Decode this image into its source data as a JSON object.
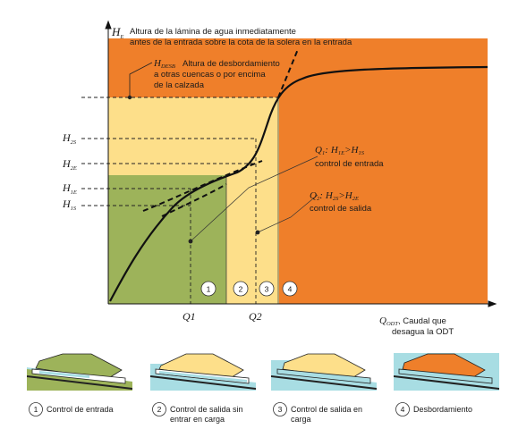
{
  "axes": {
    "y_symbol": "H",
    "y_subscript": "E",
    "y_label_line1": "Altura de la lámina de agua inmediatamente",
    "y_label_line2": "antes de la entrada sobre la cota de la solera en la entrada",
    "x_symbol": "Q",
    "x_subscript": "ODT",
    "x_label_line1": ", Caudal que",
    "x_label_line2": "desagua la ODT"
  },
  "y_ticks": [
    {
      "symbol": "H",
      "sub": "2S"
    },
    {
      "symbol": "H",
      "sub": "2E"
    },
    {
      "symbol": "H",
      "sub": "1E"
    },
    {
      "symbol": "H",
      "sub": "1S"
    }
  ],
  "x_ticks": [
    "Q1",
    "Q2"
  ],
  "annotations": {
    "overflow_symbol": "H",
    "overflow_sub": "DESB",
    "overflow_line1": "Altura de desbordamiento",
    "overflow_line2": "a otras cuencas o por encima",
    "overflow_line3": "de la calzada",
    "inlet_q": "Q",
    "inlet_q_sub": "1",
    "inlet_cond_h1": "H",
    "inlet_cond_h1_sub": "1E",
    "inlet_cond_op": ">",
    "inlet_cond_h2": "H",
    "inlet_cond_h2_sub": "1S",
    "inlet_text": "control de entrada",
    "outlet_q": "Q",
    "outlet_q_sub": "2",
    "outlet_cond_h1": "H",
    "outlet_cond_h1_sub": "2S",
    "outlet_cond_op": ">",
    "outlet_cond_h2": "H",
    "outlet_cond_h2_sub": "2E",
    "outlet_text": "control de salida",
    "punct": ":"
  },
  "zones": [
    "1",
    "2",
    "3",
    "4"
  ],
  "legend": [
    {
      "num": "1",
      "line1": "Control de entrada",
      "line2": ""
    },
    {
      "num": "2",
      "line1": "Control de salida sin",
      "line2": "entrar en carga"
    },
    {
      "num": "3",
      "line1": "Control de salida en",
      "line2": "carga"
    },
    {
      "num": "4",
      "line1": "Desbordamiento",
      "line2": ""
    }
  ],
  "colors": {
    "zone1_green": "#9db35a",
    "zone23_yellow": "#fddf8a",
    "zone4_orange": "#ef7f2a",
    "water_blue": "#a8dde3",
    "curve": "#111111"
  }
}
